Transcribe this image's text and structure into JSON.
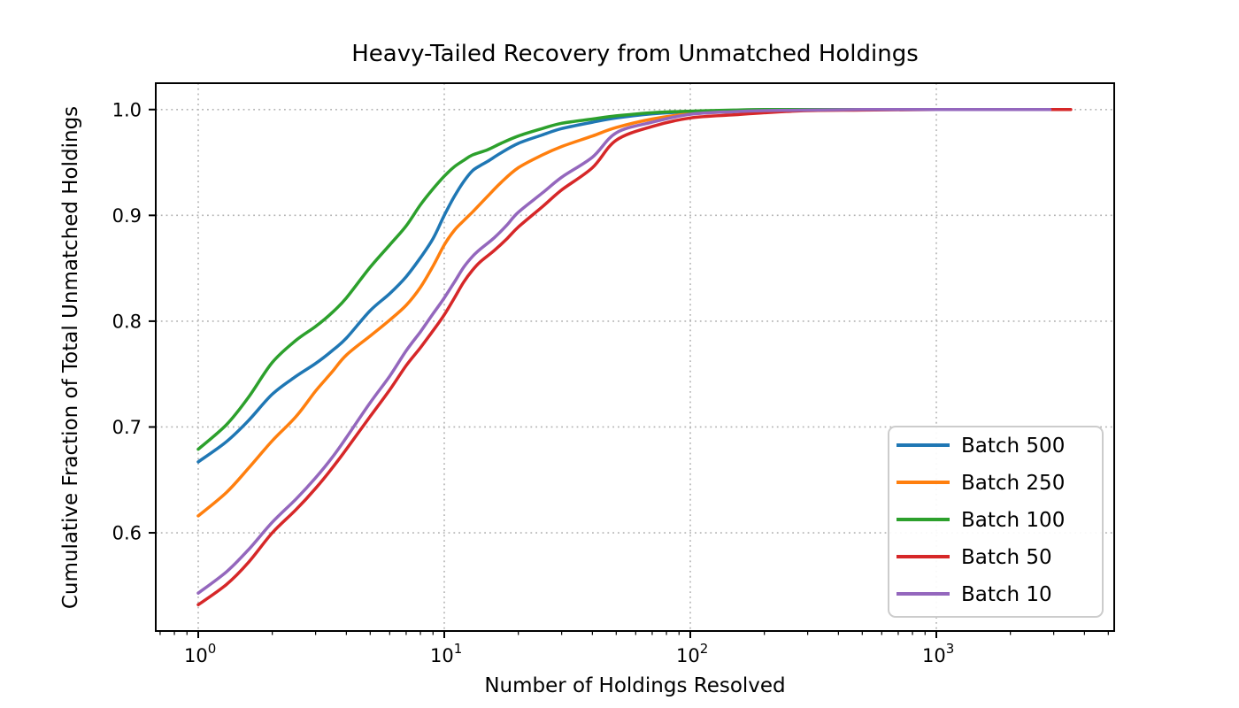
{
  "chart_data": {
    "type": "line",
    "title": "Heavy-Tailed Recovery from Unmatched Holdings",
    "xlabel": "Number of Holdings Resolved",
    "ylabel": "Cumulative Fraction of Total Unmatched Holdings",
    "x_scale": "log",
    "xlim": [
      0.672,
      5285
    ],
    "ylim": [
      0.5072,
      1.0249
    ],
    "grid": "dotted, major ticks, both axes",
    "legend_position": "lower right",
    "x_major_ticks": [
      {
        "value": 1,
        "base": "10",
        "exp": "0"
      },
      {
        "value": 10,
        "base": "10",
        "exp": "1"
      },
      {
        "value": 100,
        "base": "10",
        "exp": "2"
      },
      {
        "value": 1000,
        "base": "10",
        "exp": "3"
      }
    ],
    "x_minor_ticks": [
      0.7,
      0.8,
      0.9,
      2,
      3,
      4,
      5,
      6,
      7,
      8,
      9,
      20,
      30,
      40,
      50,
      60,
      70,
      80,
      90,
      200,
      300,
      400,
      500,
      600,
      700,
      800,
      900,
      2000,
      3000,
      4000,
      5000
    ],
    "y_ticks": [
      {
        "value": 0.6,
        "label": "0.6"
      },
      {
        "value": 0.7,
        "label": "0.7"
      },
      {
        "value": 0.8,
        "label": "0.8"
      },
      {
        "value": 0.9,
        "label": "0.9"
      },
      {
        "value": 1.0,
        "label": "1.0"
      }
    ],
    "series": [
      {
        "name": "Batch 500",
        "color": "#1f77b4",
        "points": [
          [
            1,
            0.667
          ],
          [
            1.3,
            0.686
          ],
          [
            1.6,
            0.706
          ],
          [
            2,
            0.731
          ],
          [
            2.5,
            0.748
          ],
          [
            3,
            0.76
          ],
          [
            3.5,
            0.772
          ],
          [
            4,
            0.784
          ],
          [
            5,
            0.81
          ],
          [
            6,
            0.826
          ],
          [
            7,
            0.842
          ],
          [
            8,
            0.86
          ],
          [
            9,
            0.878
          ],
          [
            10,
            0.9
          ],
          [
            11,
            0.918
          ],
          [
            12,
            0.932
          ],
          [
            13,
            0.942
          ],
          [
            14,
            0.947
          ],
          [
            15,
            0.951
          ],
          [
            17,
            0.959
          ],
          [
            20,
            0.968
          ],
          [
            25,
            0.976
          ],
          [
            30,
            0.982
          ],
          [
            40,
            0.988
          ],
          [
            50,
            0.992
          ],
          [
            70,
            0.996
          ],
          [
            100,
            0.998
          ],
          [
            150,
            0.999
          ],
          [
            200,
            0.9995
          ],
          [
            300,
            1.0
          ],
          [
            500,
            1.0
          ],
          [
            1000,
            1.0
          ],
          [
            2000,
            1.0
          ]
        ]
      },
      {
        "name": "Batch 250",
        "color": "#ff7f0e",
        "points": [
          [
            1,
            0.616
          ],
          [
            1.3,
            0.638
          ],
          [
            1.6,
            0.661
          ],
          [
            2,
            0.687
          ],
          [
            2.5,
            0.71
          ],
          [
            3,
            0.734
          ],
          [
            3.5,
            0.752
          ],
          [
            4,
            0.768
          ],
          [
            5,
            0.786
          ],
          [
            6,
            0.801
          ],
          [
            7,
            0.815
          ],
          [
            8,
            0.832
          ],
          [
            9,
            0.852
          ],
          [
            10,
            0.872
          ],
          [
            11,
            0.886
          ],
          [
            12,
            0.895
          ],
          [
            13,
            0.903
          ],
          [
            15,
            0.918
          ],
          [
            17,
            0.931
          ],
          [
            20,
            0.945
          ],
          [
            25,
            0.957
          ],
          [
            30,
            0.965
          ],
          [
            40,
            0.975
          ],
          [
            50,
            0.983
          ],
          [
            70,
            0.991
          ],
          [
            100,
            0.996
          ],
          [
            150,
            0.998
          ],
          [
            200,
            0.999
          ],
          [
            300,
            1.0
          ],
          [
            500,
            1.0
          ],
          [
            1000,
            1.0
          ],
          [
            2500,
            1.0
          ]
        ]
      },
      {
        "name": "Batch 100",
        "color": "#2ca02c",
        "points": [
          [
            1,
            0.679
          ],
          [
            1.3,
            0.702
          ],
          [
            1.6,
            0.728
          ],
          [
            2,
            0.761
          ],
          [
            2.5,
            0.782
          ],
          [
            3,
            0.795
          ],
          [
            3.5,
            0.808
          ],
          [
            4,
            0.822
          ],
          [
            5,
            0.851
          ],
          [
            6,
            0.872
          ],
          [
            7,
            0.89
          ],
          [
            8,
            0.91
          ],
          [
            9,
            0.925
          ],
          [
            10,
            0.937
          ],
          [
            11,
            0.946
          ],
          [
            12,
            0.952
          ],
          [
            13,
            0.957
          ],
          [
            15,
            0.962
          ],
          [
            17,
            0.968
          ],
          [
            20,
            0.975
          ],
          [
            25,
            0.982
          ],
          [
            30,
            0.987
          ],
          [
            40,
            0.991
          ],
          [
            50,
            0.994
          ],
          [
            70,
            0.997
          ],
          [
            100,
            0.9985
          ],
          [
            150,
            0.9995
          ],
          [
            200,
            1.0
          ],
          [
            300,
            1.0
          ],
          [
            500,
            1.0
          ],
          [
            1000,
            1.0
          ],
          [
            1800,
            1.0
          ]
        ]
      },
      {
        "name": "Batch 50",
        "color": "#d62728",
        "points": [
          [
            1,
            0.532
          ],
          [
            1.3,
            0.551
          ],
          [
            1.6,
            0.572
          ],
          [
            2,
            0.6
          ],
          [
            2.5,
            0.622
          ],
          [
            3,
            0.642
          ],
          [
            3.5,
            0.661
          ],
          [
            4,
            0.679
          ],
          [
            5,
            0.71
          ],
          [
            6,
            0.735
          ],
          [
            7,
            0.758
          ],
          [
            8,
            0.775
          ],
          [
            9,
            0.791
          ],
          [
            10,
            0.806
          ],
          [
            11,
            0.822
          ],
          [
            12,
            0.837
          ],
          [
            13,
            0.848
          ],
          [
            14,
            0.856
          ],
          [
            16,
            0.867
          ],
          [
            18,
            0.878
          ],
          [
            20,
            0.889
          ],
          [
            25,
            0.908
          ],
          [
            30,
            0.924
          ],
          [
            40,
            0.945
          ],
          [
            50,
            0.971
          ],
          [
            70,
            0.984
          ],
          [
            100,
            0.992
          ],
          [
            150,
            0.995
          ],
          [
            200,
            0.997
          ],
          [
            300,
            0.999
          ],
          [
            500,
            0.9995
          ],
          [
            1000,
            1.0
          ],
          [
            2000,
            1.0
          ],
          [
            3520,
            1.0
          ]
        ]
      },
      {
        "name": "Batch 10",
        "color": "#9467bd",
        "points": [
          [
            1,
            0.543
          ],
          [
            1.3,
            0.563
          ],
          [
            1.6,
            0.584
          ],
          [
            2,
            0.61
          ],
          [
            2.5,
            0.632
          ],
          [
            3,
            0.652
          ],
          [
            3.5,
            0.671
          ],
          [
            4,
            0.69
          ],
          [
            5,
            0.723
          ],
          [
            6,
            0.748
          ],
          [
            7,
            0.772
          ],
          [
            8,
            0.79
          ],
          [
            9,
            0.807
          ],
          [
            10,
            0.822
          ],
          [
            11,
            0.837
          ],
          [
            12,
            0.851
          ],
          [
            13,
            0.861
          ],
          [
            14,
            0.868
          ],
          [
            16,
            0.879
          ],
          [
            18,
            0.891
          ],
          [
            20,
            0.903
          ],
          [
            25,
            0.921
          ],
          [
            30,
            0.936
          ],
          [
            40,
            0.955
          ],
          [
            50,
            0.978
          ],
          [
            70,
            0.988
          ],
          [
            100,
            0.9955
          ],
          [
            150,
            0.998
          ],
          [
            200,
            0.999
          ],
          [
            300,
            0.9995
          ],
          [
            500,
            1.0
          ],
          [
            1000,
            1.0
          ],
          [
            2000,
            1.0
          ],
          [
            2900,
            1.0
          ]
        ]
      }
    ],
    "style": {
      "spine_color": "#000000",
      "grid_color": "#b3b3b3",
      "tick_color": "#000000",
      "legend_border_color": "#cccccc",
      "background": "#ffffff"
    }
  }
}
